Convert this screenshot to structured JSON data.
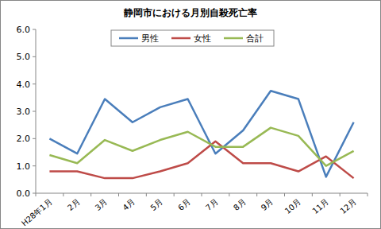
{
  "chart_data": {
    "type": "line",
    "title": "静岡市における月別自殺死亡率",
    "categories": [
      "H28年1月",
      "2月",
      "3月",
      "4月",
      "5月",
      "6月",
      "7月",
      "8月",
      "9月",
      "10月",
      "11月",
      "12月"
    ],
    "series": [
      {
        "name": "男性",
        "color": "#4a7ebb",
        "values": [
          2.0,
          1.45,
          3.45,
          2.6,
          3.15,
          3.45,
          1.45,
          2.3,
          3.75,
          3.45,
          0.6,
          2.6
        ]
      },
      {
        "name": "女性",
        "color": "#be4b48",
        "values": [
          0.8,
          0.8,
          0.55,
          0.55,
          0.8,
          1.1,
          1.9,
          1.1,
          1.1,
          0.8,
          1.35,
          0.55
        ]
      },
      {
        "name": "合計",
        "color": "#98b954",
        "values": [
          1.4,
          1.1,
          1.95,
          1.55,
          1.95,
          2.25,
          1.7,
          1.7,
          2.4,
          2.1,
          1.0,
          1.55
        ]
      }
    ],
    "ylim": [
      0,
      6
    ],
    "yticks": [
      {
        "value": 0,
        "label": "0.0"
      },
      {
        "value": 1,
        "label": "1.0"
      },
      {
        "value": 2,
        "label": "2.0"
      },
      {
        "value": 3,
        "label": "3.0"
      },
      {
        "value": 4,
        "label": "4.0"
      },
      {
        "value": 5,
        "label": "5.0"
      },
      {
        "value": 6,
        "label": "6.0"
      }
    ],
    "grid": false,
    "legend": "top"
  }
}
